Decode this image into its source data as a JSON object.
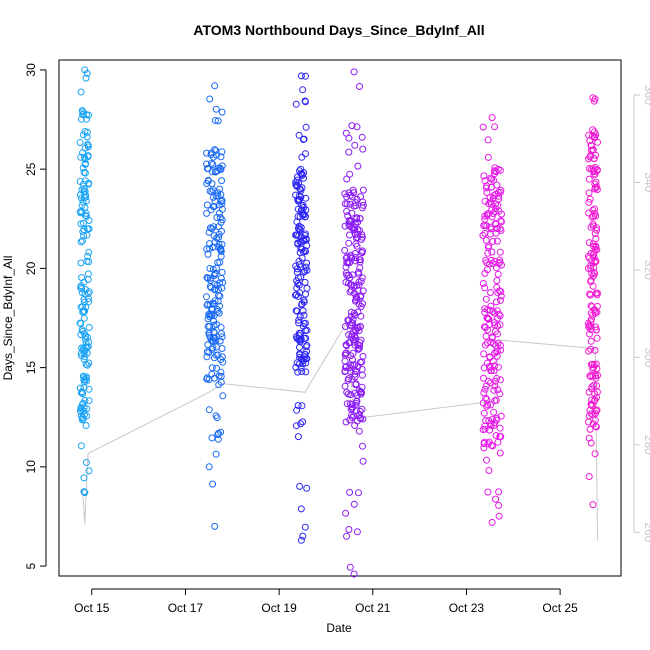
{
  "chart_data": {
    "type": "scatter",
    "title": "ATOM3 Northbound Days_Since_BdyInf_All",
    "xlabel": "Date",
    "ylabel": "Days_Since_BdyInf_All",
    "x_ticks": [
      "Oct 15",
      "Oct 17",
      "Oct 19",
      "Oct 21",
      "Oct 23",
      "Oct 25"
    ],
    "x_tick_values": [
      15,
      17,
      19,
      21,
      23,
      25
    ],
    "xlim": [
      14.3,
      26.3
    ],
    "ylim": [
      4.5,
      30.5
    ],
    "y_ticks": [
      5,
      10,
      15,
      20,
      25,
      30
    ],
    "y2_ticks": [
      260,
      280,
      300,
      320,
      340,
      360
    ],
    "y2lim": [
      250,
      368
    ],
    "grid": false,
    "legend": "none",
    "colors": {
      "burst1": "#1aa3f5",
      "burst2": "#1a6af5",
      "burst3": "#2d26f5",
      "burst4": "#8c1cf5",
      "burst5": "#e51ae8",
      "burst6": "#f21ad2",
      "line": "#c8c8c8",
      "right_axis": "#c8c8c8"
    },
    "series": [
      {
        "x_range": [
          14.75,
          14.95
        ],
        "y_range": [
          8.7,
          30
        ],
        "dense_range": [
          12,
          28
        ],
        "n": 160
      },
      {
        "x_range": [
          17.45,
          17.8
        ],
        "y_range": [
          7,
          29.2
        ],
        "dense_range": [
          14,
          26
        ],
        "n": 190
      },
      {
        "x_range": [
          19.35,
          19.6
        ],
        "y_range": [
          6.3,
          29.7
        ],
        "dense_range": [
          15,
          25
        ],
        "n": 170
      },
      {
        "x_range": [
          20.4,
          20.8
        ],
        "y_range": [
          4.6,
          29.9
        ],
        "dense_range": [
          12,
          24
        ],
        "n": 240
      },
      {
        "x_range": [
          23.35,
          23.75
        ],
        "y_range": [
          7.2,
          27.6
        ],
        "dense_range": [
          11,
          25
        ],
        "n": 210
      },
      {
        "x_range": [
          25.6,
          25.8
        ],
        "y_range": [
          8.1,
          28.6
        ],
        "dense_range": [
          12,
          27
        ],
        "n": 160
      }
    ],
    "line_series": {
      "axis": "right",
      "x": [
        14.8,
        14.85,
        14.92,
        17.5,
        17.8,
        19.55,
        20.45,
        20.6,
        23.6,
        23.7,
        25.75,
        25.8
      ],
      "y": [
        270,
        262,
        278,
        292,
        294,
        292,
        308,
        286,
        290,
        304,
        302,
        258
      ]
    }
  }
}
